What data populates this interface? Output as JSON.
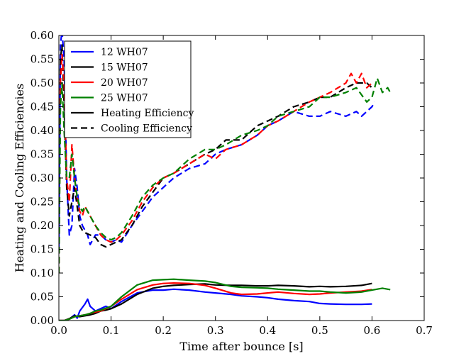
{
  "chart_data": {
    "type": "line",
    "title": "",
    "xlabel": "Time after bounce [s]",
    "ylabel": "Heating and Cooling Efficiencies",
    "xlim": [
      0.0,
      0.7
    ],
    "ylim": [
      0.0,
      0.6
    ],
    "xticks": [
      "0.0",
      "0.1",
      "0.2",
      "0.3",
      "0.4",
      "0.5",
      "0.6",
      "0.7"
    ],
    "yticks": [
      "0.00",
      "0.05",
      "0.10",
      "0.15",
      "0.20",
      "0.25",
      "0.30",
      "0.35",
      "0.40",
      "0.45",
      "0.50",
      "0.55",
      "0.60"
    ],
    "grid": false,
    "legend_position": "top-left",
    "legend": [
      {
        "label": "12 WH07",
        "color": "#0000ff",
        "style": "solid"
      },
      {
        "label": "15 WH07",
        "color": "#000000",
        "style": "solid"
      },
      {
        "label": "20 WH07",
        "color": "#ff0000",
        "style": "solid"
      },
      {
        "label": "25 WH07",
        "color": "#008000",
        "style": "solid"
      },
      {
        "label": "Heating Efficiency",
        "color": "#000000",
        "style": "solid"
      },
      {
        "label": "Cooling Efficiency",
        "color": "#000000",
        "style": "dashed"
      }
    ],
    "series": [
      {
        "name": "12 WH07 cooling",
        "color": "#0000ff",
        "style": "dashed",
        "x": [
          0.0,
          0.003,
          0.006,
          0.01,
          0.015,
          0.02,
          0.025,
          0.03,
          0.035,
          0.04,
          0.045,
          0.05,
          0.055,
          0.06,
          0.065,
          0.07,
          0.08,
          0.09,
          0.1,
          0.11,
          0.12,
          0.14,
          0.16,
          0.18,
          0.2,
          0.22,
          0.25,
          0.28,
          0.3,
          0.32,
          0.35,
          0.38,
          0.4,
          0.42,
          0.45,
          0.48,
          0.5,
          0.52,
          0.55,
          0.57,
          0.58,
          0.6,
          0.605
        ],
        "values": [
          0.15,
          0.58,
          0.61,
          0.55,
          0.3,
          0.18,
          0.2,
          0.32,
          0.28,
          0.22,
          0.2,
          0.19,
          0.18,
          0.16,
          0.17,
          0.18,
          0.18,
          0.17,
          0.165,
          0.17,
          0.165,
          0.2,
          0.23,
          0.26,
          0.28,
          0.3,
          0.32,
          0.33,
          0.35,
          0.36,
          0.37,
          0.39,
          0.41,
          0.42,
          0.44,
          0.43,
          0.43,
          0.44,
          0.43,
          0.44,
          0.43,
          0.45,
          0.46
        ]
      },
      {
        "name": "15 WH07 cooling",
        "color": "#000000",
        "style": "dashed",
        "x": [
          0.0,
          0.003,
          0.006,
          0.01,
          0.015,
          0.02,
          0.025,
          0.03,
          0.035,
          0.04,
          0.045,
          0.05,
          0.06,
          0.07,
          0.08,
          0.09,
          0.1,
          0.11,
          0.12,
          0.14,
          0.16,
          0.18,
          0.2,
          0.22,
          0.25,
          0.28,
          0.3,
          0.32,
          0.35,
          0.38,
          0.4,
          0.42,
          0.45,
          0.48,
          0.5,
          0.52,
          0.55,
          0.57,
          0.59,
          0.6
        ],
        "values": [
          0.12,
          0.55,
          0.58,
          0.45,
          0.28,
          0.22,
          0.25,
          0.28,
          0.24,
          0.2,
          0.19,
          0.185,
          0.18,
          0.175,
          0.16,
          0.155,
          0.16,
          0.165,
          0.17,
          0.2,
          0.24,
          0.27,
          0.3,
          0.31,
          0.33,
          0.35,
          0.36,
          0.38,
          0.38,
          0.41,
          0.42,
          0.43,
          0.45,
          0.46,
          0.47,
          0.47,
          0.49,
          0.5,
          0.5,
          0.49
        ]
      },
      {
        "name": "20 WH07 cooling",
        "color": "#ff0000",
        "style": "dashed",
        "x": [
          0.0,
          0.003,
          0.006,
          0.01,
          0.015,
          0.02,
          0.025,
          0.03,
          0.035,
          0.04,
          0.045,
          0.05,
          0.06,
          0.07,
          0.08,
          0.09,
          0.1,
          0.11,
          0.12,
          0.14,
          0.16,
          0.18,
          0.2,
          0.22,
          0.25,
          0.28,
          0.3,
          0.32,
          0.35,
          0.38,
          0.4,
          0.42,
          0.45,
          0.48,
          0.5,
          0.52,
          0.55,
          0.56,
          0.57,
          0.58,
          0.59,
          0.6
        ],
        "values": [
          0.1,
          0.5,
          0.56,
          0.5,
          0.3,
          0.25,
          0.37,
          0.3,
          0.26,
          0.23,
          0.22,
          0.24,
          0.22,
          0.2,
          0.18,
          0.17,
          0.165,
          0.17,
          0.18,
          0.21,
          0.25,
          0.28,
          0.3,
          0.31,
          0.33,
          0.35,
          0.34,
          0.36,
          0.37,
          0.39,
          0.41,
          0.42,
          0.44,
          0.46,
          0.47,
          0.48,
          0.5,
          0.52,
          0.5,
          0.52,
          0.49,
          0.5
        ]
      },
      {
        "name": "25 WH07 cooling",
        "color": "#008000",
        "style": "dashed",
        "x": [
          0.0,
          0.003,
          0.006,
          0.01,
          0.015,
          0.02,
          0.025,
          0.03,
          0.035,
          0.04,
          0.045,
          0.05,
          0.06,
          0.07,
          0.08,
          0.09,
          0.1,
          0.11,
          0.12,
          0.14,
          0.16,
          0.18,
          0.2,
          0.22,
          0.25,
          0.28,
          0.3,
          0.32,
          0.35,
          0.38,
          0.4,
          0.42,
          0.45,
          0.48,
          0.5,
          0.52,
          0.55,
          0.57,
          0.59,
          0.6,
          0.61,
          0.62,
          0.63,
          0.635
        ],
        "values": [
          0.1,
          0.45,
          0.5,
          0.4,
          0.3,
          0.3,
          0.35,
          0.3,
          0.26,
          0.24,
          0.23,
          0.24,
          0.22,
          0.2,
          0.185,
          0.175,
          0.17,
          0.175,
          0.185,
          0.22,
          0.26,
          0.285,
          0.3,
          0.31,
          0.34,
          0.36,
          0.36,
          0.37,
          0.39,
          0.4,
          0.41,
          0.43,
          0.44,
          0.45,
          0.47,
          0.47,
          0.48,
          0.49,
          0.46,
          0.47,
          0.51,
          0.48,
          0.49,
          0.48
        ]
      },
      {
        "name": "12 WH07 heating",
        "color": "#0000ff",
        "style": "solid",
        "x": [
          0.0,
          0.01,
          0.02,
          0.03,
          0.035,
          0.04,
          0.05,
          0.055,
          0.06,
          0.07,
          0.08,
          0.09,
          0.1,
          0.12,
          0.15,
          0.18,
          0.2,
          0.22,
          0.25,
          0.28,
          0.3,
          0.33,
          0.35,
          0.38,
          0.4,
          0.42,
          0.45,
          0.48,
          0.5,
          0.52,
          0.55,
          0.58,
          0.6
        ],
        "values": [
          0.0,
          0.0,
          0.003,
          0.012,
          0.005,
          0.02,
          0.035,
          0.045,
          0.03,
          0.02,
          0.025,
          0.03,
          0.025,
          0.04,
          0.058,
          0.064,
          0.064,
          0.066,
          0.064,
          0.06,
          0.058,
          0.055,
          0.052,
          0.05,
          0.048,
          0.045,
          0.042,
          0.04,
          0.036,
          0.035,
          0.034,
          0.034,
          0.035
        ]
      },
      {
        "name": "15 WH07 heating",
        "color": "#000000",
        "style": "solid",
        "x": [
          0.0,
          0.01,
          0.02,
          0.03,
          0.04,
          0.05,
          0.06,
          0.07,
          0.08,
          0.09,
          0.1,
          0.12,
          0.15,
          0.18,
          0.2,
          0.22,
          0.25,
          0.28,
          0.3,
          0.33,
          0.35,
          0.38,
          0.4,
          0.42,
          0.45,
          0.48,
          0.5,
          0.52,
          0.55,
          0.58,
          0.6
        ],
        "values": [
          0.0,
          0.0,
          0.004,
          0.01,
          0.008,
          0.01,
          0.012,
          0.015,
          0.02,
          0.022,
          0.025,
          0.035,
          0.055,
          0.068,
          0.072,
          0.074,
          0.076,
          0.077,
          0.075,
          0.074,
          0.074,
          0.073,
          0.073,
          0.074,
          0.073,
          0.071,
          0.072,
          0.071,
          0.072,
          0.074,
          0.078
        ]
      },
      {
        "name": "20 WH07 heating",
        "color": "#ff0000",
        "style": "solid",
        "x": [
          0.0,
          0.01,
          0.02,
          0.03,
          0.04,
          0.05,
          0.06,
          0.07,
          0.08,
          0.09,
          0.1,
          0.12,
          0.15,
          0.18,
          0.2,
          0.22,
          0.25,
          0.28,
          0.3,
          0.33,
          0.35,
          0.38,
          0.4,
          0.42,
          0.45,
          0.48,
          0.5,
          0.52,
          0.55,
          0.58,
          0.6
        ],
        "values": [
          0.0,
          0.0,
          0.003,
          0.008,
          0.01,
          0.012,
          0.015,
          0.018,
          0.02,
          0.025,
          0.03,
          0.045,
          0.065,
          0.075,
          0.078,
          0.079,
          0.078,
          0.074,
          0.068,
          0.058,
          0.055,
          0.056,
          0.058,
          0.06,
          0.057,
          0.055,
          0.056,
          0.058,
          0.06,
          0.062,
          0.065
        ]
      },
      {
        "name": "25 WH07 heating",
        "color": "#008000",
        "style": "solid",
        "x": [
          0.0,
          0.01,
          0.02,
          0.03,
          0.04,
          0.05,
          0.06,
          0.07,
          0.08,
          0.09,
          0.1,
          0.12,
          0.15,
          0.18,
          0.2,
          0.22,
          0.25,
          0.28,
          0.3,
          0.33,
          0.35,
          0.38,
          0.4,
          0.42,
          0.45,
          0.48,
          0.5,
          0.52,
          0.55,
          0.58,
          0.6,
          0.62,
          0.635
        ],
        "values": [
          0.0,
          0.0,
          0.003,
          0.008,
          0.01,
          0.012,
          0.015,
          0.02,
          0.022,
          0.026,
          0.03,
          0.05,
          0.075,
          0.085,
          0.086,
          0.087,
          0.085,
          0.083,
          0.08,
          0.072,
          0.07,
          0.069,
          0.068,
          0.066,
          0.064,
          0.062,
          0.062,
          0.06,
          0.058,
          0.06,
          0.064,
          0.068,
          0.065
        ]
      }
    ]
  }
}
